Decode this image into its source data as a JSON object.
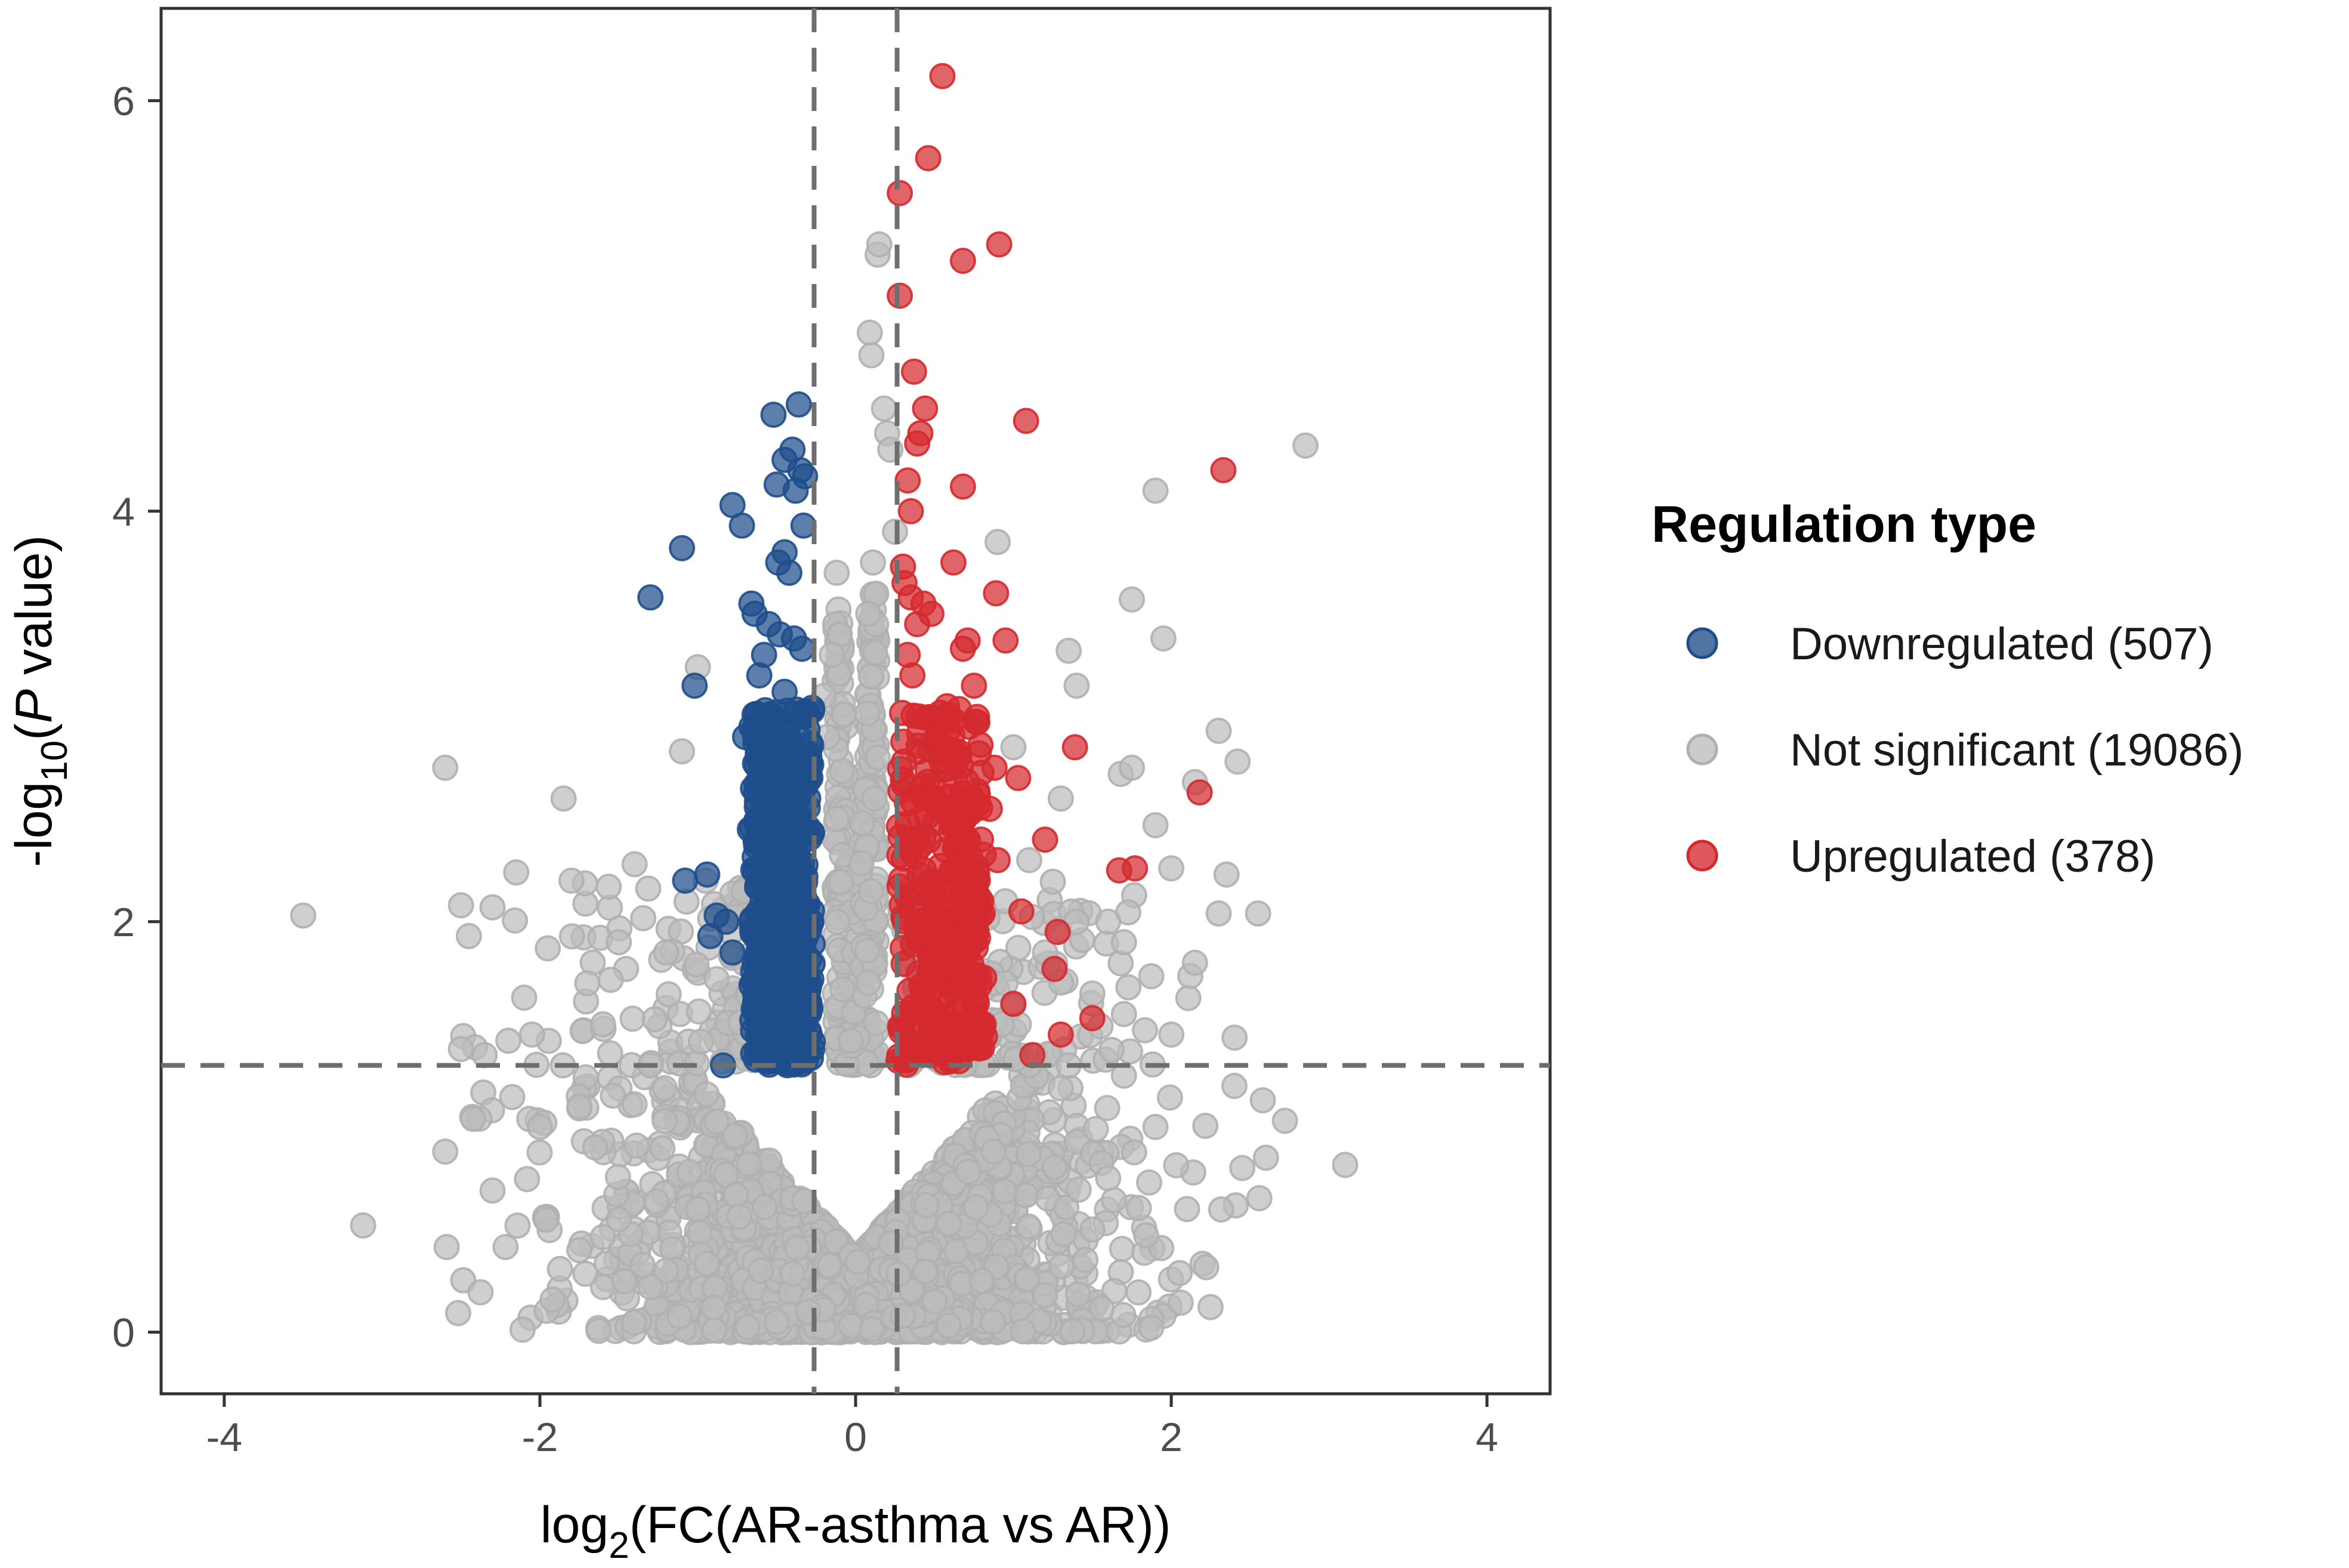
{
  "chart_data": {
    "type": "scatter",
    "title": "",
    "xlabel_main": "log",
    "xlabel_sub": "2",
    "xlabel_rest": "(FC(AR-asthma vs AR))",
    "ylabel_pre": "-log",
    "ylabel_sub": "10",
    "ylabel_open": "(",
    "ylabel_italic": "P",
    "ylabel_rest": " value)",
    "xlim": [
      -4.4,
      4.4
    ],
    "ylim": [
      -0.3,
      6.45
    ],
    "x_ticks": [
      -4,
      -2,
      0,
      2,
      4
    ],
    "x_tick_labels": [
      "-4",
      "-2",
      "0",
      "2",
      "4"
    ],
    "y_ticks": [
      0,
      2,
      4,
      6
    ],
    "y_tick_labels": [
      "0",
      "2",
      "4",
      "6"
    ],
    "thresholds": {
      "log2fc": [
        -0.263,
        0.263
      ],
      "neg_log10_p": 1.3
    },
    "grid": false,
    "legend": {
      "title": "Regulation type",
      "position": "right",
      "entries": [
        {
          "label": "Downregulated (507)",
          "color": "#1f4e8c",
          "count": 507
        },
        {
          "label": "Not significant (19086)",
          "color": "#bdbdbd",
          "count": 19086
        },
        {
          "label": "Upregulated (378)",
          "color": "#d42a2f",
          "count": 378
        }
      ]
    },
    "series": [
      {
        "name": "Not significant",
        "color": "#bdbdbd",
        "points": [
          [
            -3.5,
            2.03
          ],
          [
            -3.12,
            0.52
          ],
          [
            -2.6,
            2.75
          ],
          [
            -2.5,
            2.08
          ],
          [
            -2.45,
            1.93
          ],
          [
            -2.3,
            2.07
          ],
          [
            -2.15,
            2.24
          ],
          [
            -2.1,
            1.63
          ],
          [
            -1.95,
            1.87
          ],
          [
            -1.85,
            2.6
          ],
          [
            -1.8,
            2.2
          ],
          [
            -1.7,
            1.7
          ],
          [
            -1.6,
            1.5
          ],
          [
            -1.5,
            1.9
          ],
          [
            -1.4,
            2.28
          ],
          [
            -1.3,
            1.3
          ],
          [
            -1.2,
            1.85
          ],
          [
            -1.1,
            2.83
          ],
          [
            -1.0,
            3.24
          ],
          [
            -0.95,
            2.2
          ],
          [
            -0.88,
            1.72
          ],
          [
            -2.6,
            0.88
          ],
          [
            -2.3,
            0.69
          ],
          [
            -2.0,
            1.0
          ],
          [
            -2.5,
            1.38
          ],
          [
            -2.35,
            1.35
          ],
          [
            -2.2,
            1.42
          ],
          [
            -2.05,
            1.45
          ],
          [
            -1.75,
            1.1
          ],
          [
            -1.65,
            0.9
          ],
          [
            0.09,
            4.87
          ],
          [
            0.1,
            4.76
          ],
          [
            0.14,
            5.25
          ],
          [
            0.15,
            5.3
          ],
          [
            0.18,
            4.5
          ],
          [
            0.2,
            4.38
          ],
          [
            0.22,
            4.3
          ],
          [
            0.25,
            3.9
          ],
          [
            0.11,
            3.75
          ],
          [
            0.08,
            3.5
          ],
          [
            -0.12,
            3.7
          ],
          [
            -0.1,
            3.4
          ],
          [
            -0.15,
            3.3
          ],
          [
            -0.2,
            3.1
          ],
          [
            -0.18,
            2.9
          ],
          [
            -0.12,
            2.5
          ],
          [
            0.12,
            2.6
          ],
          [
            0.14,
            2.8
          ],
          [
            1.9,
            4.1
          ],
          [
            2.85,
            4.32
          ],
          [
            1.75,
            3.57
          ],
          [
            1.95,
            3.38
          ],
          [
            0.9,
            3.85
          ],
          [
            1.35,
            3.32
          ],
          [
            1.4,
            3.15
          ],
          [
            1.68,
            2.72
          ],
          [
            1.75,
            2.75
          ],
          [
            1.9,
            2.47
          ],
          [
            2.0,
            2.26
          ],
          [
            2.15,
            2.68
          ],
          [
            2.3,
            2.93
          ],
          [
            2.42,
            2.78
          ],
          [
            2.35,
            2.23
          ],
          [
            2.55,
            2.04
          ],
          [
            2.3,
            2.04
          ],
          [
            1.0,
            2.85
          ],
          [
            0.7,
            2.4
          ],
          [
            1.1,
            2.3
          ],
          [
            1.3,
            2.6
          ],
          [
            1.4,
            2.0
          ],
          [
            1.6,
            2.0
          ],
          [
            1.7,
            1.9
          ],
          [
            1.2,
            1.85
          ],
          [
            0.95,
            1.7
          ],
          [
            2.15,
            1.8
          ],
          [
            1.5,
            1.65
          ],
          [
            1.7,
            1.55
          ],
          [
            2.0,
            1.45
          ],
          [
            2.4,
            1.2
          ],
          [
            2.58,
            1.13
          ],
          [
            2.72,
            1.03
          ],
          [
            2.45,
            0.8
          ],
          [
            2.6,
            0.85
          ],
          [
            2.1,
            0.6
          ],
          [
            1.9,
            1.0
          ],
          [
            1.7,
            1.25
          ],
          [
            1.6,
            0.75
          ],
          [
            1.35,
            1.3
          ],
          [
            0.5,
            0.15
          ],
          [
            0.8,
            0.25
          ],
          [
            1.2,
            0.18
          ],
          [
            -0.5,
            0.05
          ],
          [
            -0.9,
            0.12
          ],
          [
            -1.2,
            0.3
          ],
          [
            -1.3,
            0.22
          ],
          [
            -1.75,
            0.4
          ],
          [
            -1.5,
            0.55
          ],
          [
            -1.0,
            0.6
          ],
          [
            -0.6,
            0.3
          ],
          [
            -0.3,
            0.1
          ],
          [
            0.3,
            0.08
          ],
          [
            1.5,
            0.5
          ]
        ],
        "clouds": [
          {
            "count": 1600,
            "x_center": 0,
            "x_sd": 0.62,
            "y_max": 1.3
          },
          {
            "count": 700,
            "x_center": 0,
            "x_sd": 0.95,
            "y_max": 1.25
          },
          {
            "count": 340,
            "x_center": 0,
            "x_sd": 0.9,
            "y_min": 1.3,
            "y_max": 2.2
          },
          {
            "count": 280,
            "x_center": 0,
            "x_sd": 0.06,
            "y_min": 1.3,
            "y_max": 3.6
          }
        ]
      },
      {
        "name": "Downregulated",
        "color": "#1f4e8c",
        "points": [
          [
            -0.36,
            4.52
          ],
          [
            -0.52,
            4.47
          ],
          [
            -0.4,
            4.3
          ],
          [
            -0.45,
            4.25
          ],
          [
            -0.35,
            4.2
          ],
          [
            -0.32,
            4.17
          ],
          [
            -0.5,
            4.13
          ],
          [
            -0.38,
            4.1
          ],
          [
            -0.78,
            4.03
          ],
          [
            -0.72,
            3.93
          ],
          [
            -0.33,
            3.93
          ],
          [
            -1.1,
            3.82
          ],
          [
            -0.45,
            3.8
          ],
          [
            -0.49,
            3.75
          ],
          [
            -0.42,
            3.7
          ],
          [
            -1.3,
            3.58
          ],
          [
            -0.66,
            3.55
          ],
          [
            -0.64,
            3.5
          ],
          [
            -0.55,
            3.45
          ],
          [
            -0.48,
            3.4
          ],
          [
            -0.39,
            3.38
          ],
          [
            -0.34,
            3.33
          ],
          [
            -0.58,
            3.3
          ],
          [
            -0.61,
            3.2
          ],
          [
            -1.02,
            3.15
          ],
          [
            -0.45,
            3.12
          ],
          [
            -0.5,
            3.02
          ],
          [
            -0.66,
            2.95
          ],
          [
            -0.7,
            2.9
          ],
          [
            -0.41,
            2.86
          ],
          [
            -0.56,
            2.8
          ],
          [
            -0.6,
            2.75
          ],
          [
            -0.52,
            2.66
          ],
          [
            -0.63,
            2.63
          ],
          [
            -0.47,
            2.55
          ],
          [
            -0.61,
            2.5
          ],
          [
            -0.67,
            2.45
          ],
          [
            -0.53,
            2.4
          ],
          [
            -0.46,
            2.3
          ],
          [
            -0.94,
            2.23
          ],
          [
            -1.08,
            2.2
          ],
          [
            -0.62,
            2.17
          ],
          [
            -0.51,
            2.1
          ],
          [
            -0.88,
            2.03
          ],
          [
            -0.82,
            2.0
          ],
          [
            -0.57,
            1.95
          ],
          [
            -0.92,
            1.93
          ],
          [
            -0.78,
            1.85
          ],
          [
            -0.47,
            1.8
          ],
          [
            -0.6,
            1.7
          ],
          [
            -0.63,
            1.62
          ],
          [
            -0.43,
            1.55
          ],
          [
            -0.5,
            1.45
          ],
          [
            -0.42,
            1.42
          ],
          [
            -0.84,
            1.3
          ],
          [
            -0.38,
            1.35
          ],
          [
            -0.3,
            1.6
          ],
          [
            -0.28,
            2.0
          ],
          [
            -0.3,
            2.6
          ],
          [
            -0.32,
            3.0
          ]
        ],
        "clouds": [
          {
            "count": 440,
            "x_min": -0.66,
            "x_max": -0.27,
            "y_min": 1.3,
            "y_max": 3.05
          }
        ]
      },
      {
        "name": "Upregulated",
        "color": "#d42a2f",
        "points": [
          [
            0.55,
            6.12
          ],
          [
            0.46,
            5.72
          ],
          [
            0.28,
            5.55
          ],
          [
            0.91,
            5.3
          ],
          [
            0.68,
            5.22
          ],
          [
            0.28,
            5.05
          ],
          [
            0.37,
            4.68
          ],
          [
            0.44,
            4.5
          ],
          [
            1.08,
            4.44
          ],
          [
            0.41,
            4.38
          ],
          [
            0.39,
            4.33
          ],
          [
            0.33,
            4.15
          ],
          [
            0.68,
            4.12
          ],
          [
            2.33,
            4.2
          ],
          [
            0.35,
            4.0
          ],
          [
            0.3,
            3.73
          ],
          [
            0.62,
            3.75
          ],
          [
            0.31,
            3.65
          ],
          [
            0.35,
            3.58
          ],
          [
            0.89,
            3.6
          ],
          [
            0.43,
            3.55
          ],
          [
            0.48,
            3.5
          ],
          [
            0.39,
            3.45
          ],
          [
            0.71,
            3.37
          ],
          [
            0.95,
            3.37
          ],
          [
            0.68,
            3.33
          ],
          [
            0.33,
            3.3
          ],
          [
            0.36,
            3.2
          ],
          [
            0.75,
            3.15
          ],
          [
            0.58,
            3.05
          ],
          [
            0.4,
            3.0
          ],
          [
            0.72,
            2.95
          ],
          [
            0.54,
            2.85
          ],
          [
            1.39,
            2.85
          ],
          [
            0.88,
            2.75
          ],
          [
            1.03,
            2.7
          ],
          [
            0.5,
            2.6
          ],
          [
            2.18,
            2.63
          ],
          [
            0.85,
            2.55
          ],
          [
            0.69,
            2.5
          ],
          [
            1.2,
            2.4
          ],
          [
            0.57,
            2.35
          ],
          [
            0.9,
            2.3
          ],
          [
            1.67,
            2.25
          ],
          [
            1.77,
            2.26
          ],
          [
            0.48,
            2.2
          ],
          [
            0.78,
            2.12
          ],
          [
            1.05,
            2.05
          ],
          [
            0.62,
            2.0
          ],
          [
            1.28,
            1.95
          ],
          [
            0.7,
            1.85
          ],
          [
            1.26,
            1.77
          ],
          [
            0.58,
            1.7
          ],
          [
            1.0,
            1.6
          ],
          [
            1.5,
            1.53
          ],
          [
            0.8,
            1.5
          ],
          [
            1.3,
            1.45
          ],
          [
            0.35,
            1.4
          ],
          [
            1.12,
            1.35
          ],
          [
            0.6,
            1.32
          ]
        ],
        "clouds": [
          {
            "count": 290,
            "x_min": 0.27,
            "x_max": 0.82,
            "y_min": 1.3,
            "y_max": 3.05
          }
        ]
      }
    ]
  }
}
